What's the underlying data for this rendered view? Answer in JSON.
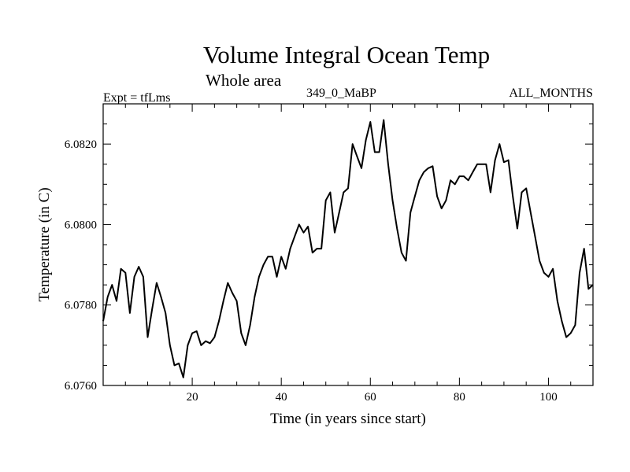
{
  "chart_data": {
    "type": "line",
    "title": "Volume Integral Ocean Temp",
    "subtitle": "Whole area",
    "left_label": "Expt = tfLms",
    "center_label": "349_0_MaBP",
    "right_label": "ALL_MONTHS",
    "xlabel": "Time (in years since start)",
    "ylabel": "Temperature (in C)",
    "xlim": [
      0,
      110
    ],
    "ylim": [
      6.076,
      6.083
    ],
    "xticks": [
      20,
      40,
      60,
      80,
      100
    ],
    "xtick_labels": [
      "20",
      "40",
      "60",
      "80",
      "100"
    ],
    "yticks": [
      6.076,
      6.078,
      6.08,
      6.082
    ],
    "ytick_labels": [
      "6.0760",
      "6.0780",
      "6.0800",
      "6.0820"
    ],
    "grid": false,
    "series": [
      {
        "name": "Volume Integral Ocean Temp",
        "color": "#000000",
        "x": [
          0,
          1,
          2,
          3,
          4,
          5,
          6,
          7,
          8,
          9,
          10,
          11,
          12,
          13,
          14,
          15,
          16,
          17,
          18,
          19,
          20,
          21,
          22,
          23,
          24,
          25,
          26,
          27,
          28,
          29,
          30,
          31,
          32,
          33,
          34,
          35,
          36,
          37,
          38,
          39,
          40,
          41,
          42,
          43,
          44,
          45,
          46,
          47,
          48,
          49,
          50,
          51,
          52,
          53,
          54,
          55,
          56,
          57,
          58,
          59,
          60,
          61,
          62,
          63,
          64,
          65,
          66,
          67,
          68,
          69,
          70,
          71,
          72,
          73,
          74,
          75,
          76,
          77,
          78,
          79,
          80,
          81,
          82,
          83,
          84,
          85,
          86,
          87,
          88,
          89,
          90,
          91,
          92,
          93,
          94,
          95,
          96,
          97,
          98,
          99,
          100,
          101,
          102,
          103,
          104,
          105,
          106,
          107,
          108,
          109,
          110
        ],
        "values": [
          6.0776,
          6.0782,
          6.0785,
          6.0781,
          6.0789,
          6.0788,
          6.0778,
          6.0787,
          6.07895,
          6.0787,
          6.0772,
          6.0779,
          6.07855,
          6.0782,
          6.0778,
          6.077,
          6.0765,
          6.07655,
          6.0762,
          6.077,
          6.0773,
          6.07735,
          6.077,
          6.0771,
          6.07705,
          6.0772,
          6.0776,
          6.0781,
          6.07855,
          6.0783,
          6.0781,
          6.0773,
          6.077,
          6.0775,
          6.0782,
          6.0787,
          6.079,
          6.0792,
          6.0792,
          6.0787,
          6.0792,
          6.0789,
          6.0794,
          6.0797,
          6.08,
          6.0798,
          6.07995,
          6.0793,
          6.0794,
          6.0794,
          6.0806,
          6.0808,
          6.0798,
          6.0803,
          6.0808,
          6.0809,
          6.082,
          6.0817,
          6.0814,
          6.0821,
          6.08255,
          6.0818,
          6.0818,
          6.0826,
          6.0815,
          6.0806,
          6.0799,
          6.0793,
          6.0791,
          6.0803,
          6.0807,
          6.0811,
          6.0813,
          6.0814,
          6.08145,
          6.0807,
          6.0804,
          6.0806,
          6.0811,
          6.081,
          6.0812,
          6.0812,
          6.0811,
          6.0813,
          6.0815,
          6.0815,
          6.0815,
          6.0808,
          6.0816,
          6.082,
          6.08155,
          6.0816,
          6.0807,
          6.0799,
          6.0808,
          6.0809,
          6.0803,
          6.0797,
          6.0791,
          6.0788,
          6.0787,
          6.0789,
          6.0781,
          6.0776,
          6.0772,
          6.0773,
          6.0775,
          6.0788,
          6.0794,
          6.0784,
          6.0785
        ]
      }
    ]
  }
}
